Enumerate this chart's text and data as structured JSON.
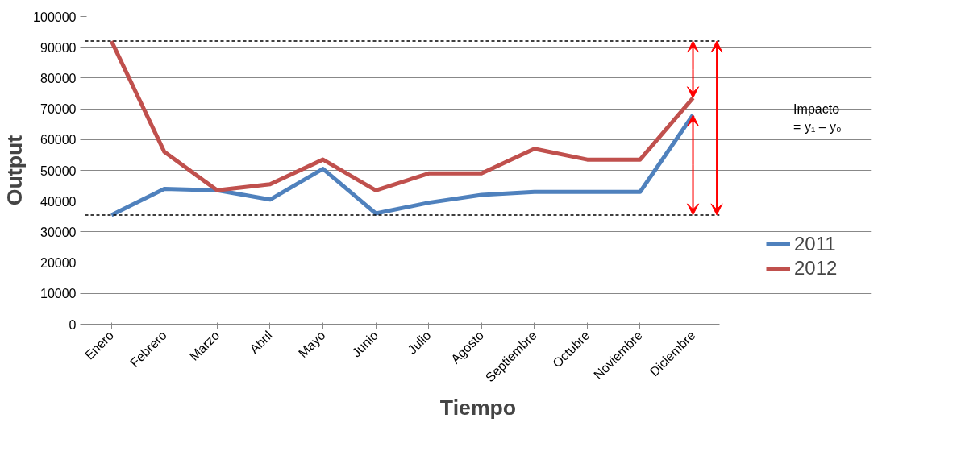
{
  "chart_data": {
    "type": "line",
    "xlabel": "Tiempo",
    "ylabel": "Output",
    "categories": [
      "Enero",
      "Febrero",
      "Marzo",
      "Abril",
      "Mayo",
      "Junio",
      "Julio",
      "Agosto",
      "Septiembre",
      "Octubre",
      "Noviembre",
      "Diciembre"
    ],
    "series": [
      {
        "name": "2011",
        "color": "#4f81bd",
        "values": [
          35500,
          44000,
          43500,
          40500,
          50500,
          36000,
          39500,
          42000,
          43000,
          43000,
          43000,
          68000
        ]
      },
      {
        "name": "2012",
        "color": "#c0504d",
        "values": [
          92000,
          56000,
          43500,
          45500,
          53500,
          43500,
          49000,
          49000,
          57000,
          53500,
          53500,
          73500
        ]
      }
    ],
    "ylim": [
      0,
      100000
    ],
    "yticks": [
      0,
      10000,
      20000,
      30000,
      40000,
      50000,
      60000,
      70000,
      80000,
      90000,
      100000
    ],
    "grid": "y",
    "legend": "right",
    "marker": "none",
    "line_style": "solid",
    "ref_lines": [
      {
        "axis": "y",
        "value": 92000,
        "label": null,
        "color": "#000000",
        "line_style": "dashed"
      },
      {
        "axis": "y",
        "value": 35500,
        "label": null,
        "color": "#000000",
        "line_style": "dashed"
      }
    ],
    "annotations": [
      "Impacto\n= y₁ – y₀"
    ]
  }
}
